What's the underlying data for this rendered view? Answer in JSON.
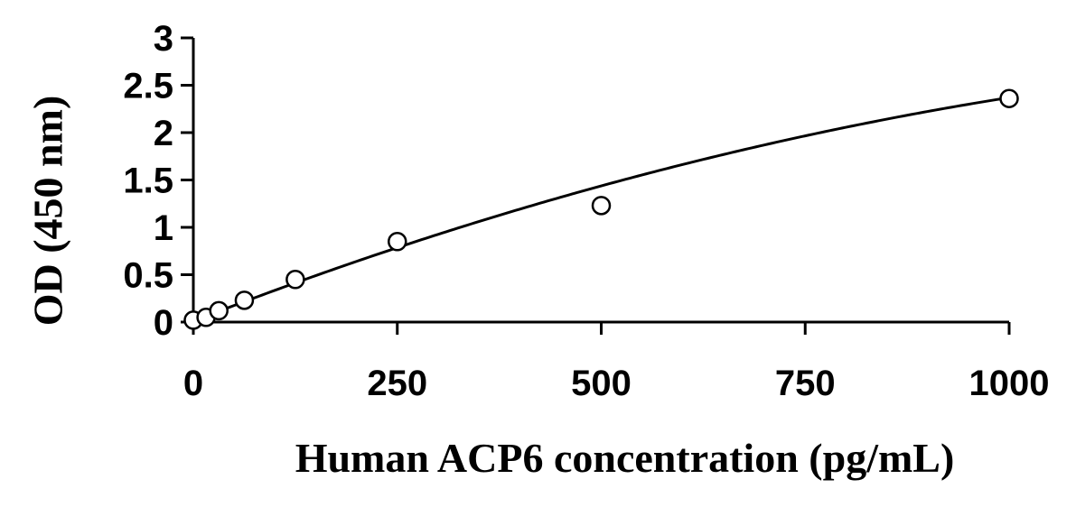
{
  "chart_data": {
    "type": "scatter",
    "title": "",
    "xlabel": "Human ACP6 concentration (pg/mL)",
    "ylabel": "OD (450 nm)",
    "xlim": [
      0,
      1000
    ],
    "ylim": [
      0,
      3
    ],
    "xticks": [
      0,
      250,
      500,
      750,
      1000
    ],
    "yticks": [
      0,
      0.5,
      1,
      1.5,
      2,
      2.5,
      3
    ],
    "grid": false,
    "legend": "none",
    "series": [
      {
        "points": [
          {
            "x": 0,
            "y": 0.02
          },
          {
            "x": 15.6,
            "y": 0.05
          },
          {
            "x": 31.25,
            "y": 0.12
          },
          {
            "x": 62.5,
            "y": 0.23
          },
          {
            "x": 125,
            "y": 0.45
          },
          {
            "x": 250,
            "y": 0.85
          },
          {
            "x": 500,
            "y": 1.23
          },
          {
            "x": 1000,
            "y": 2.36
          }
        ],
        "fit_curve": {
          "type": "polynomial",
          "coefficients": [
            0.01,
            0.00335,
            -9.9e-07
          ]
        }
      }
    ]
  }
}
